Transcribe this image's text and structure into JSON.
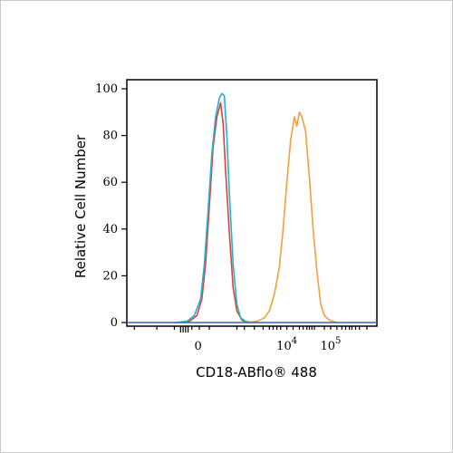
{
  "chart_data": {
    "type": "line",
    "xlabel": "CD18-ABflo® 488",
    "ylabel": "Relative Cell Number",
    "ylim": [
      0,
      100
    ],
    "yticks": [
      "0",
      "20",
      "40",
      "60",
      "80",
      "100"
    ],
    "xtick_labels": [
      {
        "base": "0",
        "exp": ""
      },
      {
        "base": "10",
        "exp": "4"
      },
      {
        "base": "10",
        "exp": "5"
      }
    ],
    "x_axis_note": "logicle scale; x values in relative channel positions (0 to 1)",
    "series": [
      {
        "color": "#d9443a",
        "points": [
          [
            0.2,
            0
          ],
          [
            0.25,
            0.5
          ],
          [
            0.28,
            3
          ],
          [
            0.3,
            10
          ],
          [
            0.315,
            25
          ],
          [
            0.33,
            50
          ],
          [
            0.345,
            75
          ],
          [
            0.36,
            88
          ],
          [
            0.375,
            94
          ],
          [
            0.385,
            85
          ],
          [
            0.395,
            65
          ],
          [
            0.41,
            38
          ],
          [
            0.425,
            15
          ],
          [
            0.44,
            5
          ],
          [
            0.46,
            1
          ],
          [
            0.48,
            0
          ]
        ]
      },
      {
        "color": "#22b1cf",
        "points": [
          [
            0.19,
            0
          ],
          [
            0.24,
            0.5
          ],
          [
            0.27,
            3
          ],
          [
            0.295,
            10
          ],
          [
            0.31,
            25
          ],
          [
            0.325,
            48
          ],
          [
            0.34,
            72
          ],
          [
            0.355,
            88
          ],
          [
            0.37,
            96
          ],
          [
            0.38,
            98
          ],
          [
            0.39,
            97
          ],
          [
            0.4,
            80
          ],
          [
            0.41,
            55
          ],
          [
            0.425,
            25
          ],
          [
            0.44,
            8
          ],
          [
            0.455,
            2
          ],
          [
            0.475,
            0.5
          ],
          [
            0.5,
            0
          ]
        ]
      },
      {
        "color": "#f0a040",
        "points": [
          [
            0.48,
            0
          ],
          [
            0.52,
            0.5
          ],
          [
            0.55,
            2
          ],
          [
            0.57,
            5
          ],
          [
            0.59,
            12
          ],
          [
            0.61,
            24
          ],
          [
            0.625,
            40
          ],
          [
            0.64,
            60
          ],
          [
            0.655,
            78
          ],
          [
            0.67,
            88
          ],
          [
            0.68,
            84
          ],
          [
            0.69,
            90
          ],
          [
            0.7,
            88
          ],
          [
            0.715,
            82
          ],
          [
            0.73,
            62
          ],
          [
            0.745,
            40
          ],
          [
            0.76,
            22
          ],
          [
            0.775,
            8
          ],
          [
            0.79,
            3
          ],
          [
            0.81,
            1
          ],
          [
            0.84,
            0
          ]
        ]
      },
      {
        "color": "#3a60c8",
        "points": [
          [
            0.0,
            0
          ],
          [
            1.0,
            0
          ]
        ]
      }
    ]
  }
}
